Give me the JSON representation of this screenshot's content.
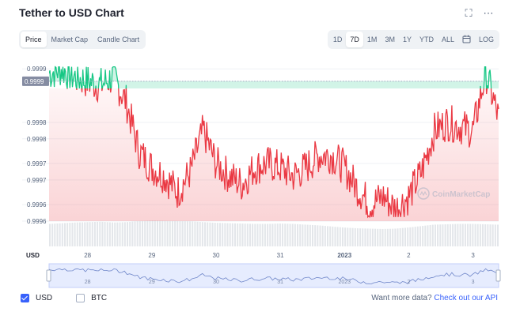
{
  "header": {
    "title": "Tether to USD Chart"
  },
  "tabs": [
    {
      "label": "Price",
      "active": true
    },
    {
      "label": "Market Cap",
      "active": false
    },
    {
      "label": "Candle Chart",
      "active": false
    }
  ],
  "ranges": [
    {
      "label": "1D",
      "active": false
    },
    {
      "label": "7D",
      "active": true
    },
    {
      "label": "1M",
      "active": false
    },
    {
      "label": "3M",
      "active": false
    },
    {
      "label": "1Y",
      "active": false
    },
    {
      "label": "YTD",
      "active": false
    },
    {
      "label": "ALL",
      "active": false
    },
    {
      "label": "",
      "icon": "calendar-icon",
      "active": false
    },
    {
      "label": "LOG",
      "active": false
    }
  ],
  "icons": {
    "fullscreen": "expand-icon",
    "more": "more-horizontal-icon",
    "calendar": "calendar-icon"
  },
  "colors": {
    "up": "#16c784",
    "down": "#ea3943",
    "accent": "#3861fb",
    "volume": "#e3e6ea"
  },
  "footer": {
    "usd_label": "USD",
    "btc_label": "BTC",
    "cta_text": "Want more data?",
    "cta_link": "Check out our API"
  },
  "chart_data": {
    "type": "line",
    "title": "",
    "ylabel": "",
    "xlabel": "USD",
    "x_tick_labels": [
      "28",
      "29",
      "30",
      "31",
      "2023",
      "2",
      "3"
    ],
    "y_tick_labels": [
      "0.9999",
      "0.9999",
      "0.9998",
      "0.9998",
      "0.9997",
      "0.9997",
      "0.9996",
      "0.9996"
    ],
    "y_tick_values": [
      0.99995,
      0.99992,
      0.99982,
      0.99978,
      0.99972,
      0.99968,
      0.99962,
      0.99958
    ],
    "ylim": [
      0.99958,
      0.99996
    ],
    "reference_value": 0.99992,
    "reference_label": "0.9999",
    "grid": true,
    "watermark": "CoinMarketCap",
    "x_days": [
      27.4,
      27.6,
      27.8,
      28.0,
      28.2,
      28.4,
      28.6,
      28.8,
      29.0,
      29.2,
      29.4,
      29.6,
      29.8,
      30.0,
      30.2,
      30.4,
      30.6,
      30.8,
      31.0,
      31.2,
      31.4,
      31.6,
      31.8,
      32.0,
      32.2,
      32.4,
      32.6,
      32.8,
      33.0,
      33.2,
      33.4,
      33.6,
      33.8,
      34.0,
      34.2,
      34.4
    ],
    "values": [
      0.99994,
      0.99995,
      0.99993,
      0.99992,
      0.99991,
      0.99993,
      0.99987,
      0.99975,
      0.99971,
      0.99969,
      0.99965,
      0.9997,
      0.9998,
      0.99972,
      0.99969,
      0.99967,
      0.99971,
      0.99972,
      0.99971,
      0.99969,
      0.99971,
      0.99974,
      0.99974,
      0.99971,
      0.99966,
      0.99962,
      0.99964,
      0.99961,
      0.99964,
      0.9997,
      0.9998,
      0.99982,
      0.99981,
      0.9998,
      0.99994,
      0.99983
    ],
    "volume_values": [
      0.62,
      0.64,
      0.66,
      0.67,
      0.68,
      0.66,
      0.67,
      0.7,
      0.72,
      0.71,
      0.7,
      0.69,
      0.67,
      0.65,
      0.64,
      0.63,
      0.62,
      0.62,
      0.63,
      0.62,
      0.6,
      0.58,
      0.55,
      0.52,
      0.5,
      0.49,
      0.48,
      0.49,
      0.52,
      0.56,
      0.6,
      0.61,
      0.62,
      0.62,
      0.61,
      0.6
    ]
  }
}
